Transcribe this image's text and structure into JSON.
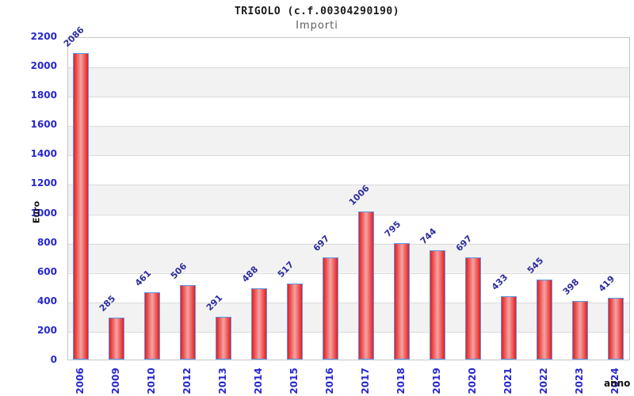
{
  "header": {
    "title": "TRIGOLO (c.f.00304290190)",
    "subtitle": "Importi"
  },
  "chart_data": {
    "type": "bar",
    "title": "TRIGOLO (c.f.00304290190)",
    "subtitle": "Importi",
    "xlabel": "anno",
    "ylabel": "Euro",
    "categories": [
      "2006",
      "2009",
      "2010",
      "2012",
      "2013",
      "2014",
      "2015",
      "2016",
      "2017",
      "2018",
      "2019",
      "2020",
      "2021",
      "2022",
      "2023",
      "2024"
    ],
    "values": [
      2086,
      285,
      461,
      506,
      291,
      488,
      517,
      697,
      1006,
      795,
      744,
      697,
      433,
      545,
      398,
      419
    ],
    "ylim": [
      0,
      2200
    ],
    "ytick_step": 200,
    "grid": true,
    "legend": "none",
    "colors": {
      "bar_fill_edge": "#e51e1e",
      "bar_fill_center": "#f5a3a3",
      "bar_border": "#5b97e3",
      "tick_label": "#2727cd",
      "value_label": "#2c2c9e",
      "band_gray": "#f2f2f2",
      "gridline": "#dadada",
      "title": "#1a1a1a",
      "subtitle": "#5e5e5e"
    }
  }
}
